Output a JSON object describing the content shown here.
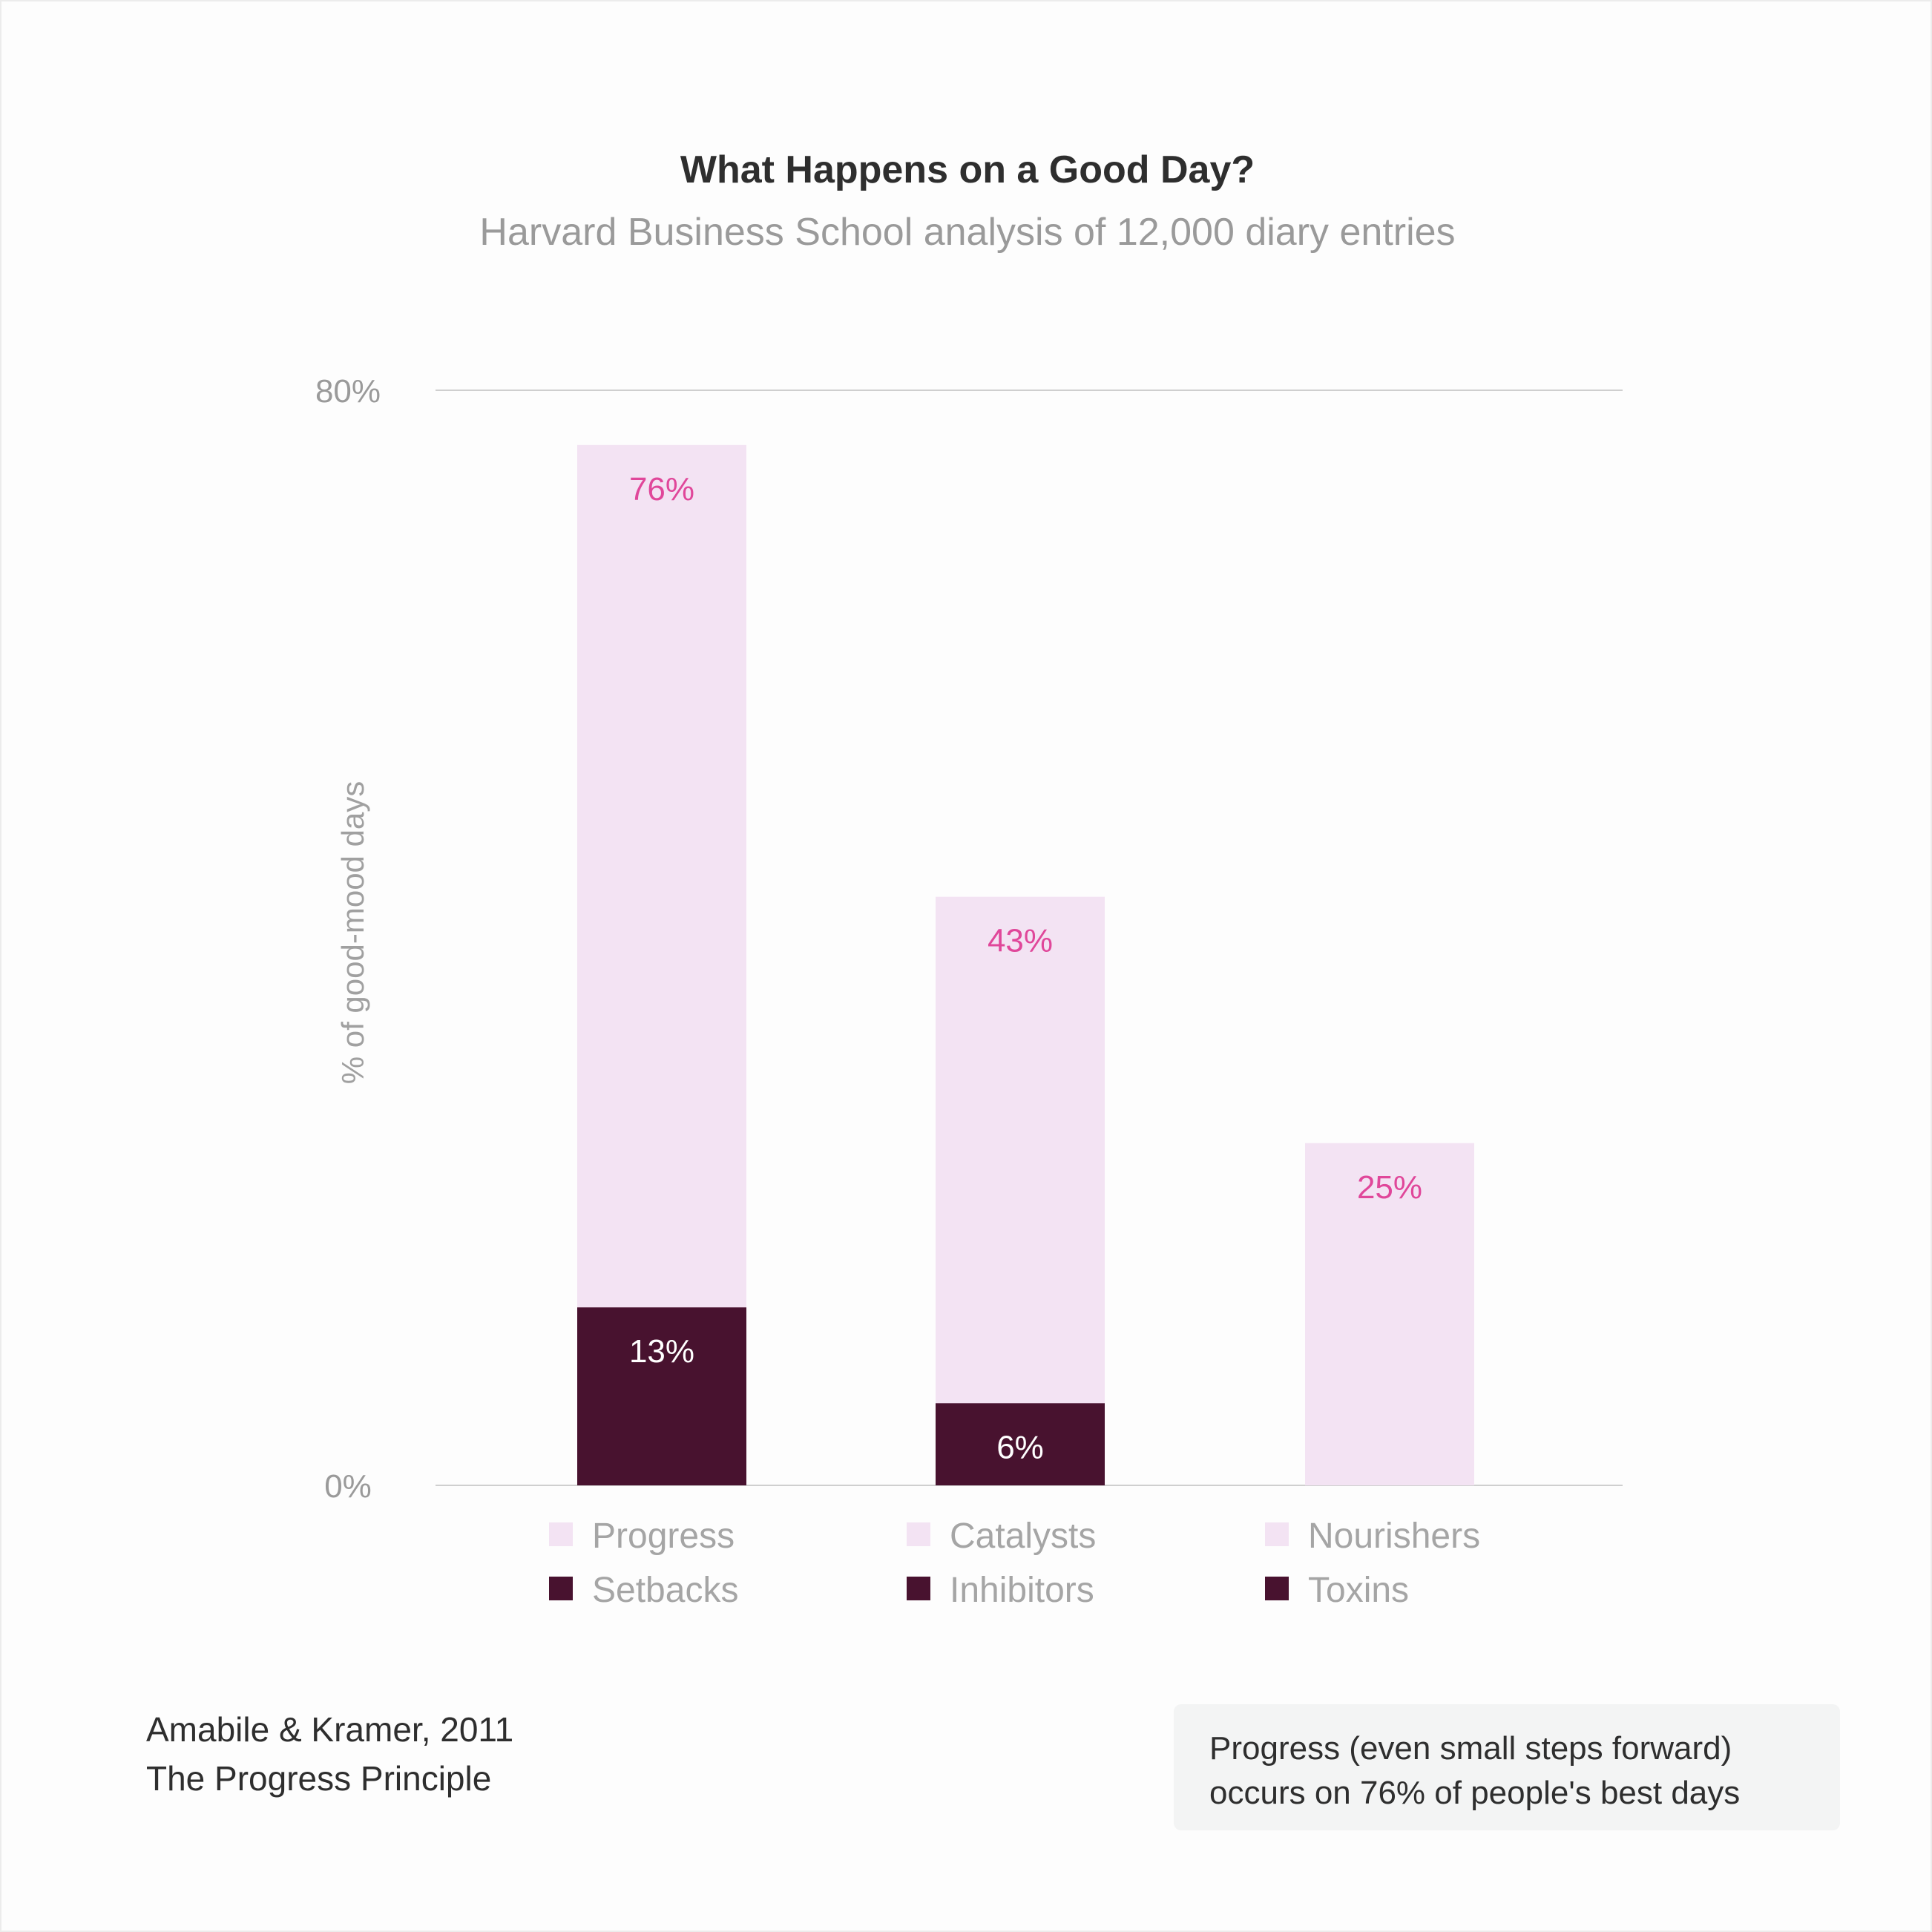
{
  "chart_data": {
    "type": "bar",
    "stacked": true,
    "title": "What Happens on a Good Day?",
    "subtitle": "Harvard Business School analysis of 12,000 diary entries",
    "ylabel": "% of good-mood days",
    "ylim": [
      0,
      80
    ],
    "yticks": [
      {
        "value": 0,
        "label": "0%"
      },
      {
        "value": 80,
        "label": "80%"
      }
    ],
    "groups": [
      {
        "top_name": "Progress",
        "top_value": 76,
        "top_label": "76%",
        "bottom_name": "Setbacks",
        "bottom_value": 13,
        "bottom_label": "13%"
      },
      {
        "top_name": "Catalysts",
        "top_value": 43,
        "top_label": "43%",
        "bottom_name": "Inhibitors",
        "bottom_value": 6,
        "bottom_label": "6%"
      },
      {
        "top_name": "Nourishers",
        "top_value": 25,
        "top_label": "25%",
        "bottom_name": "Toxins",
        "bottom_value": 0,
        "bottom_label": ""
      }
    ],
    "colors": {
      "top": "#f3e3f3",
      "bottom": "#48122f",
      "top_label": "#e0479a",
      "bottom_label": "#ffffff"
    },
    "grid": true,
    "legend_position": "bottom"
  },
  "source": {
    "line1": "Amabile & Kramer, 2011",
    "line2": "The Progress Principle"
  },
  "note": {
    "line1": "Progress (even small steps forward)",
    "line2": "occurs on 76% of people's best days"
  }
}
